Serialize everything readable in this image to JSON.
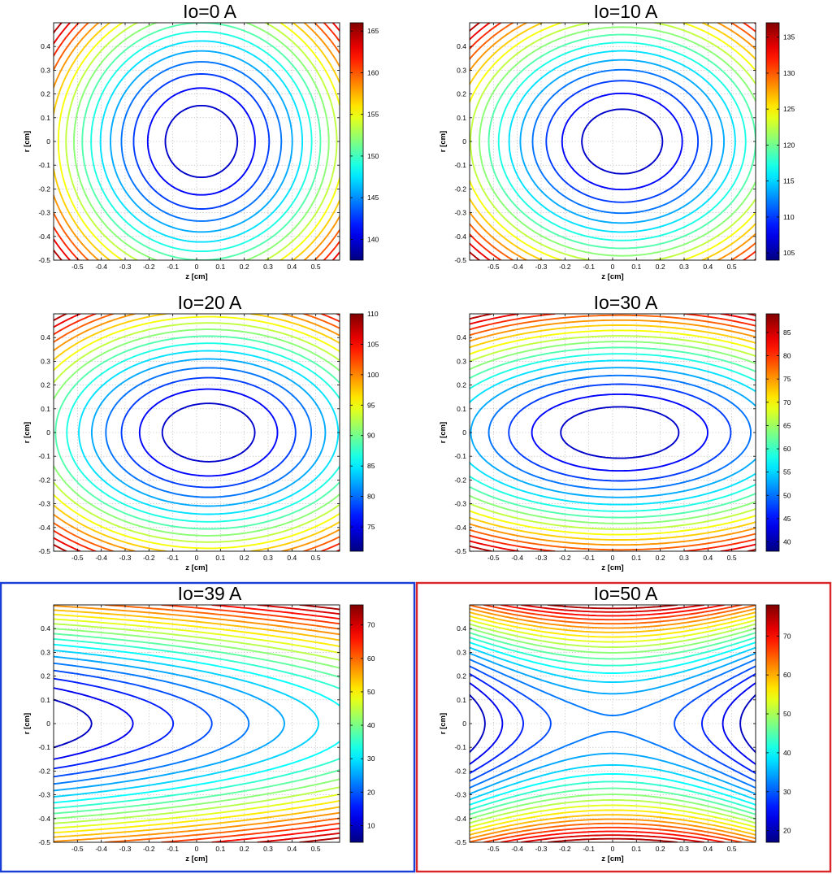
{
  "chart_data": [
    {
      "type": "contour",
      "title": "Io=0 A",
      "xlabel": "z [cm]",
      "ylabel": "r [cm]",
      "xlim": [
        -0.6,
        0.6
      ],
      "ylim": [
        -0.5,
        0.5
      ],
      "xticks": [
        "-0.5",
        "-0.4",
        "-0.3",
        "-0.2",
        "-0.1",
        "0",
        "0.1",
        "0.2",
        "0.3",
        "0.4",
        "0.5"
      ],
      "yticks": [
        "-0.5",
        "-0.4",
        "-0.3",
        "-0.2",
        "-0.1",
        "0",
        "0.1",
        "0.2",
        "0.3",
        "0.4"
      ],
      "colorbar": {
        "range": [
          137.5,
          166
        ],
        "ticks": [
          "140",
          "145",
          "150",
          "155",
          "160",
          "165"
        ]
      },
      "colormap": "jet",
      "grid": true,
      "field_model": {
        "z0": 0.02,
        "a": 0.7,
        "b": 0.7,
        "c": 0.0
      },
      "contour_levels": 17,
      "highlight": null
    },
    {
      "type": "contour",
      "title": "Io=10 A",
      "xlabel": "z [cm]",
      "ylabel": "r [cm]",
      "xlim": [
        -0.6,
        0.6
      ],
      "ylim": [
        -0.5,
        0.5
      ],
      "xticks": [
        "-0.5",
        "-0.4",
        "-0.3",
        "-0.2",
        "-0.1",
        "0",
        "0.1",
        "0.2",
        "0.3",
        "0.4",
        "0.5"
      ],
      "yticks": [
        "-0.5",
        "-0.4",
        "-0.3",
        "-0.2",
        "-0.1",
        "0",
        "0.1",
        "0.2",
        "0.3",
        "0.4"
      ],
      "colorbar": {
        "range": [
          104,
          137
        ],
        "ticks": [
          "105",
          "110",
          "115",
          "120",
          "125",
          "130",
          "135"
        ]
      },
      "colormap": "jet",
      "grid": true,
      "field_model": {
        "z0": 0.04,
        "a": 0.55,
        "b": 0.85,
        "c": 0.0
      },
      "contour_levels": 17,
      "highlight": null
    },
    {
      "type": "contour",
      "title": "Io=20 A",
      "xlabel": "z [cm]",
      "ylabel": "r [cm]",
      "xlim": [
        -0.6,
        0.6
      ],
      "ylim": [
        -0.5,
        0.5
      ],
      "xticks": [
        "-0.5",
        "-0.4",
        "-0.3",
        "-0.2",
        "-0.1",
        "0",
        "0.1",
        "0.2",
        "0.3",
        "0.4",
        "0.5"
      ],
      "yticks": [
        "-0.5",
        "-0.4",
        "-0.3",
        "-0.2",
        "-0.1",
        "0",
        "0.1",
        "0.2",
        "0.3",
        "0.4"
      ],
      "colorbar": {
        "range": [
          71,
          110
        ],
        "ticks": [
          "75",
          "80",
          "85",
          "90",
          "95",
          "100",
          "105",
          "110"
        ]
      },
      "colormap": "jet",
      "grid": true,
      "field_model": {
        "z0": 0.05,
        "a": 0.4,
        "b": 1.0,
        "c": 0.0
      },
      "contour_levels": 17,
      "highlight": null
    },
    {
      "type": "contour",
      "title": "Io=30 A",
      "xlabel": "z [cm]",
      "ylabel": "r [cm]",
      "xlim": [
        -0.6,
        0.6
      ],
      "ylim": [
        -0.5,
        0.5
      ],
      "xticks": [
        "-0.5",
        "-0.4",
        "-0.3",
        "-0.2",
        "-0.1",
        "0",
        "0.1",
        "0.2",
        "0.3",
        "0.4",
        "0.5"
      ],
      "yticks": [
        "-0.5",
        "-0.4",
        "-0.3",
        "-0.2",
        "-0.1",
        "0",
        "0.1",
        "0.2",
        "0.3",
        "0.4"
      ],
      "colorbar": {
        "range": [
          38,
          89
        ],
        "ticks": [
          "40",
          "45",
          "50",
          "55",
          "60",
          "65",
          "70",
          "75",
          "80",
          "85"
        ]
      },
      "colormap": "jet",
      "grid": true,
      "field_model": {
        "z0": 0.03,
        "a": 0.22,
        "b": 1.15,
        "c": 0.0
      },
      "contour_levels": 17,
      "highlight": null
    },
    {
      "type": "contour",
      "title": "Io=39 A",
      "xlabel": "z [cm]",
      "ylabel": "r [cm]",
      "xlim": [
        -0.6,
        0.6
      ],
      "ylim": [
        -0.5,
        0.5
      ],
      "xticks": [
        "-0.5",
        "-0.4",
        "-0.3",
        "-0.2",
        "-0.1",
        "0",
        "0.1",
        "0.2",
        "0.3",
        "0.4",
        "0.5"
      ],
      "yticks": [
        "-0.5",
        "-0.4",
        "-0.3",
        "-0.2",
        "-0.1",
        "0",
        "0.1",
        "0.2",
        "0.3",
        "0.4"
      ],
      "colorbar": {
        "range": [
          5,
          76
        ],
        "ticks": [
          "10",
          "20",
          "30",
          "40",
          "50",
          "60",
          "70"
        ]
      },
      "colormap": "jet",
      "grid": true,
      "field_model": {
        "z0": 0.1,
        "a": 0.03,
        "b": 1.3,
        "c": 0.12
      },
      "contour_levels": 21,
      "highlight": "#1a3fd6"
    },
    {
      "type": "contour",
      "title": "Io=50 A",
      "xlabel": "z [cm]",
      "ylabel": "r [cm]",
      "xlim": [
        -0.6,
        0.6
      ],
      "ylim": [
        -0.5,
        0.5
      ],
      "xticks": [
        "-0.5",
        "-0.4",
        "-0.3",
        "-0.2",
        "-0.1",
        "0",
        "0.1",
        "0.2",
        "0.3",
        "0.4",
        "0.5"
      ],
      "yticks": [
        "-0.5",
        "-0.4",
        "-0.3",
        "-0.2",
        "-0.1",
        "0",
        "0.1",
        "0.2",
        "0.3",
        "0.4"
      ],
      "colorbar": {
        "range": [
          17,
          78
        ],
        "ticks": [
          "20",
          "30",
          "40",
          "50",
          "60",
          "70"
        ]
      },
      "colormap": "jet",
      "grid": true,
      "field_model": {
        "z0": 0.0,
        "a": -0.25,
        "b": 1.25,
        "c": 0.0,
        "saddle": true
      },
      "contour_levels": 21,
      "highlight": "#d9262b"
    }
  ]
}
